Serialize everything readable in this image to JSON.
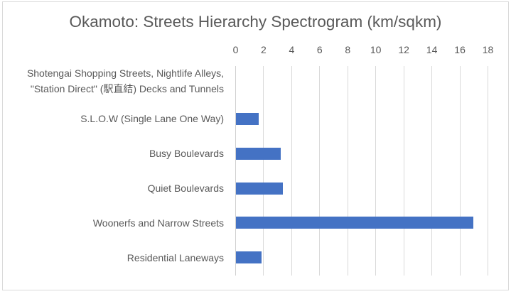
{
  "chart_data": {
    "type": "bar",
    "orientation": "horizontal",
    "title": "Okamoto:  Streets Hierarchy Spectrogram (km/sqkm)",
    "xlabel": "",
    "ylabel": "",
    "xlim": [
      0,
      18
    ],
    "x_ticks": [
      "0",
      "2",
      "4",
      "6",
      "8",
      "10",
      "12",
      "14",
      "16",
      "18"
    ],
    "x_axis_position": "top",
    "grid": true,
    "legend": null,
    "bar_color": "#4472c4",
    "categories": [
      "Shotengai Shopping Streets, Nightlife Alleys, \"Station Direct\" (駅直結) Decks and Tunnels",
      "S.L.O.W (Single Lane One Way)",
      "Busy Boulevards",
      "Quiet Boulevards",
      "Woonerfs and Narrow Streets",
      "Residential Laneways"
    ],
    "values": [
      0,
      1.6,
      3.2,
      3.35,
      16.95,
      1.85
    ]
  },
  "labels": {
    "cat0_line1": "Shotengai Shopping Streets, Nightlife Alleys,",
    "cat0_line2": "\"Station Direct\" (駅直結) Decks and Tunnels",
    "cat1": "S.L.O.W (Single Lane One Way)",
    "cat2": "Busy Boulevards",
    "cat3": "Quiet Boulevards",
    "cat4": "Woonerfs and Narrow Streets",
    "cat5": "Residential Laneways"
  }
}
